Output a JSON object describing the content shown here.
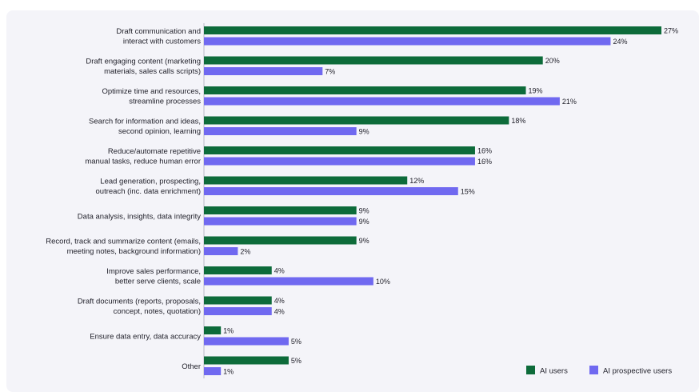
{
  "chart_data": {
    "type": "bar",
    "orientation": "horizontal",
    "title": "",
    "xlabel": "",
    "ylabel": "",
    "value_suffix": "%",
    "xlim": [
      0,
      27
    ],
    "grid": false,
    "legend_position": "bottom-right",
    "categories": [
      "Draft communication and\ninteract with customers",
      "Draft engaging content (marketing\nmaterials, sales calls scripts)",
      "Optimize time and resources,\nstreamline processes",
      "Search for information and ideas,\nsecond opinion, learning",
      "Reduce/automate repetitive\nmanual tasks, reduce human error",
      "Lead generation, prospecting,\noutreach (inc. data enrichment)",
      "Data analysis, insights, data integrity",
      "Record, track and summarize content (emails,\nmeeting notes, background information)",
      "Improve sales performance,\nbetter serve clients, scale",
      "Draft documents (reports, proposals,\nconcept, notes, quotation)",
      "Ensure data entry, data accuracy",
      "Other"
    ],
    "series": [
      {
        "name": "AI users",
        "color": "#0d6b3a",
        "values": [
          27,
          20,
          19,
          18,
          16,
          12,
          9,
          9,
          4,
          4,
          1,
          5
        ]
      },
      {
        "name": "AI prospective users",
        "color": "#7069f0",
        "values": [
          24,
          7,
          21,
          9,
          16,
          15,
          9,
          2,
          10,
          4,
          5,
          1
        ]
      }
    ]
  },
  "colors": {
    "panel_background": "#f4f4f9",
    "axis_line": "#b8b8c8",
    "text": "#1e1e28"
  }
}
